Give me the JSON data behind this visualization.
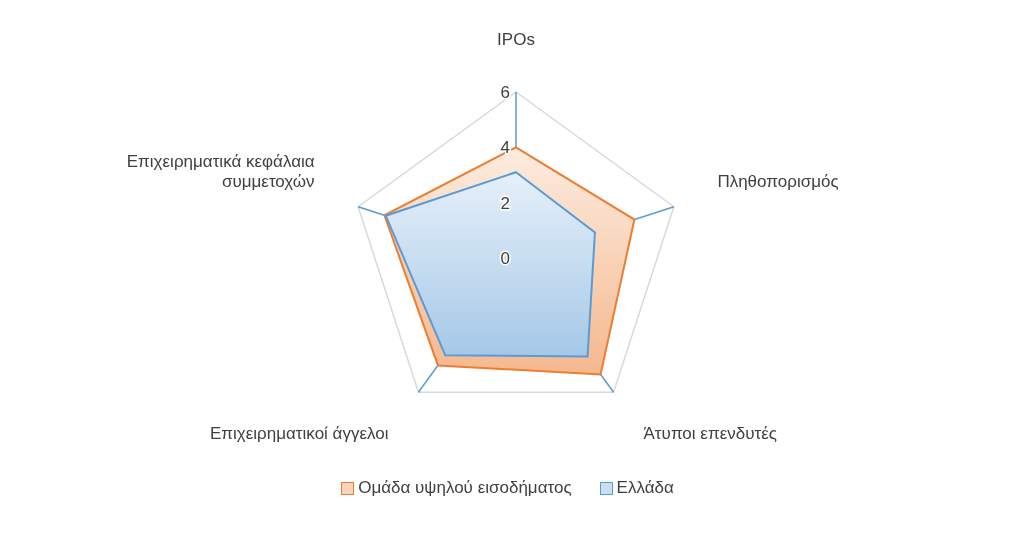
{
  "chart_data": {
    "type": "radar",
    "categories": [
      "IPOs",
      "Πληθοπορισμός",
      "Άτυποι επενδυτές",
      "Επιχειρηματικοί άγγελοι",
      "Επιχειρηματικά κεφάλαια συμμετοχών"
    ],
    "series": [
      {
        "name": "Ομάδα υψηλού εισοδήματος",
        "color": "#ed7d31",
        "values": [
          4.0,
          4.5,
          5.2,
          4.8,
          5.0
        ]
      },
      {
        "name": "Ελλάδα",
        "color": "#5b9bd5",
        "values": [
          3.1,
          3.0,
          4.4,
          4.35,
          4.95
        ]
      }
    ],
    "ylim": [
      0,
      6
    ],
    "yticks": [
      0,
      2,
      4,
      6
    ],
    "grid": true,
    "legend": "bottom"
  }
}
